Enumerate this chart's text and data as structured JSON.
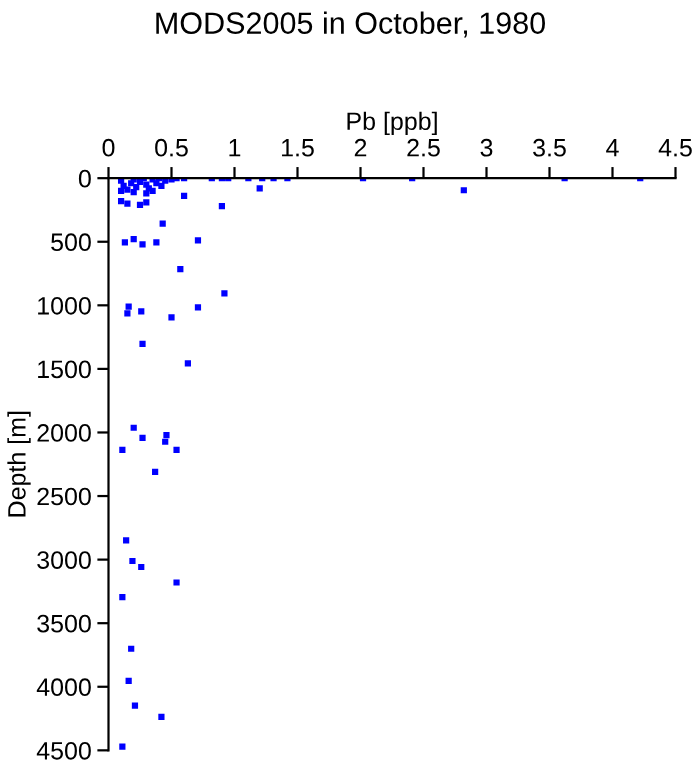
{
  "chart_data": {
    "type": "scatter",
    "title": "MODS2005 in October, 1980",
    "xlabel": "Pb [ppb]",
    "ylabel": "Depth [m]",
    "x": [
      0.54,
      0.6,
      0.82,
      0.9,
      0.95,
      1.11,
      1.22,
      1.31,
      1.42,
      2.02,
      2.41,
      3.62,
      4.22,
      2.82,
      1.2,
      0.1,
      0.12,
      0.15,
      0.18,
      0.2,
      0.22,
      0.25,
      0.28,
      0.3,
      0.32,
      0.35,
      0.38,
      0.4,
      0.42,
      0.45,
      0.5,
      0.35,
      0.1,
      0.2,
      0.3,
      0.1,
      0.15,
      0.25,
      0.3,
      0.6,
      0.9,
      0.43,
      0.13,
      0.2,
      0.27,
      0.38,
      0.71,
      0.57,
      0.92,
      0.16,
      0.15,
      0.26,
      0.5,
      0.71,
      0.27,
      0.63,
      0.2,
      0.27,
      0.46,
      0.45,
      0.54,
      0.11,
      0.37,
      0.14,
      0.19,
      0.26,
      0.54,
      0.11,
      0.18,
      0.16,
      0.21,
      0.42,
      0.11
    ],
    "values": [
      0,
      0,
      0,
      0,
      0,
      0,
      0,
      0,
      0,
      0,
      0,
      0,
      0,
      95,
      80,
      20,
      60,
      90,
      40,
      10,
      70,
      30,
      0,
      50,
      80,
      10,
      40,
      0,
      60,
      20,
      10,
      100,
      100,
      110,
      120,
      180,
      200,
      210,
      190,
      140,
      220,
      358,
      505,
      480,
      520,
      505,
      490,
      716,
      906,
      1011,
      1063,
      1047,
      1095,
      1016,
      1304,
      1457,
      1963,
      2042,
      2021,
      2073,
      2137,
      2137,
      2310,
      2848,
      3011,
      3058,
      3180,
      3295,
      3701,
      3953,
      4148,
      4237,
      4470
    ],
    "color": "#0000ff",
    "marker": "square",
    "grid": false,
    "xlim": [
      0,
      4.5
    ],
    "xticks": [
      0,
      0.5,
      1,
      1.5,
      2,
      2.5,
      3,
      3.5,
      4,
      4.5
    ],
    "ylim": [
      4500,
      0
    ],
    "yticks": [
      0,
      500,
      1000,
      1500,
      2000,
      2500,
      3000,
      3500,
      4000,
      4500
    ]
  }
}
